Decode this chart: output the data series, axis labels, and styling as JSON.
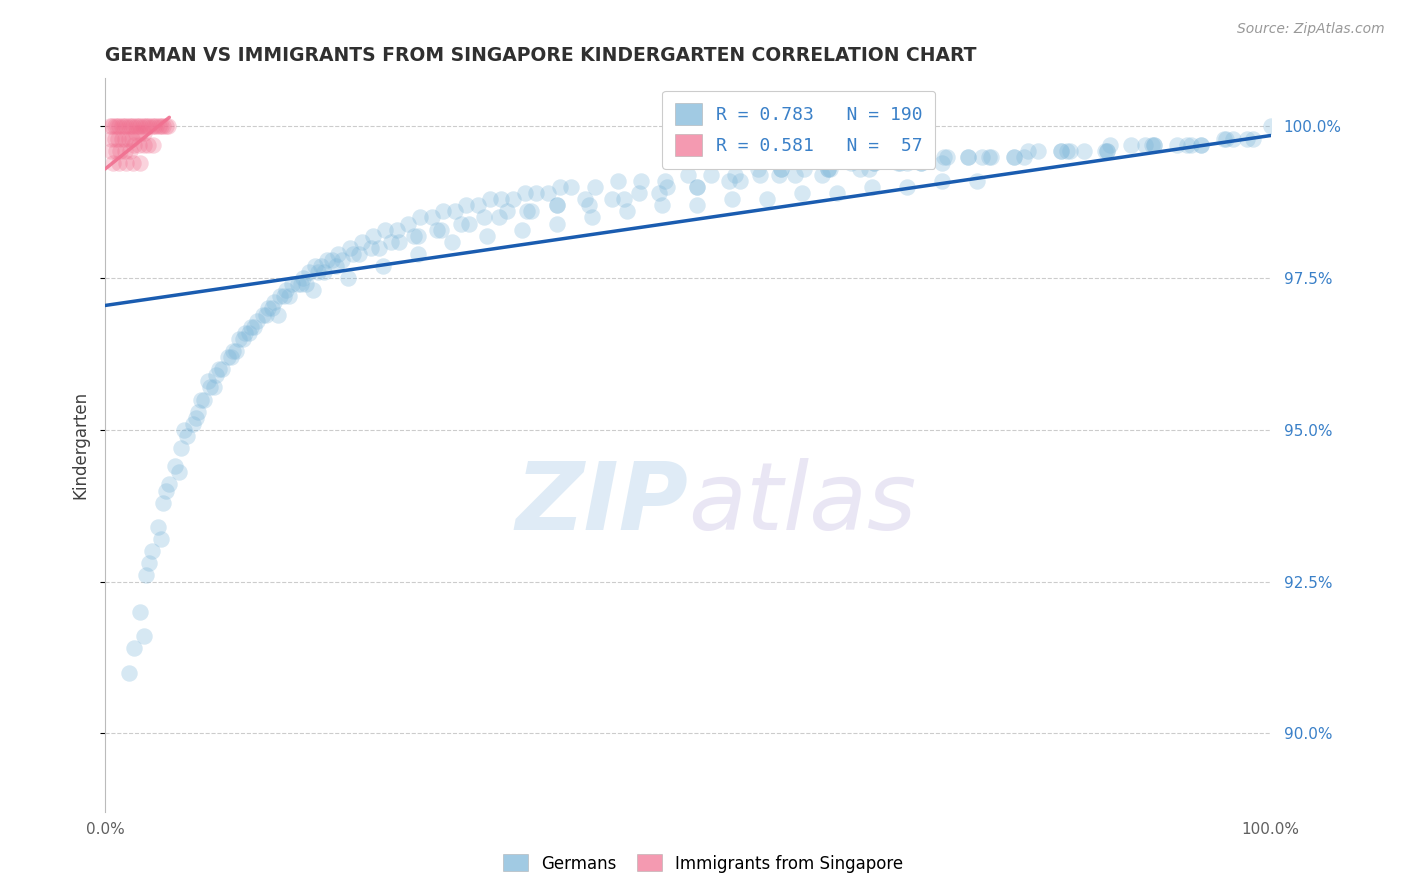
{
  "title": "GERMAN VS IMMIGRANTS FROM SINGAPORE KINDERGARTEN CORRELATION CHART",
  "source_text": "Source: ZipAtlas.com",
  "ylabel": "Kindergarten",
  "watermark_zip": "ZIP",
  "watermark_atlas": "atlas",
  "blue_color": "#7ab4d8",
  "pink_color": "#f07090",
  "trend_blue_color": "#1a5cb0",
  "background_color": "#ffffff",
  "grid_color": "#cccccc",
  "title_color": "#303030",
  "right_axis_color": "#3a80c8",
  "xmin": 0.0,
  "xmax": 1.0,
  "ymin": 0.887,
  "ymax": 1.008,
  "yticks": [
    0.9,
    0.925,
    0.95,
    0.975,
    1.0
  ],
  "legend_label_blue": "R = 0.783   N = 190",
  "legend_label_pink": "R = 0.581   N =  57",
  "blue_scatter_x": [
    0.02,
    0.03,
    0.035,
    0.04,
    0.045,
    0.05,
    0.055,
    0.06,
    0.065,
    0.07,
    0.075,
    0.08,
    0.085,
    0.09,
    0.095,
    0.1,
    0.105,
    0.11,
    0.115,
    0.12,
    0.125,
    0.13,
    0.135,
    0.14,
    0.145,
    0.15,
    0.155,
    0.16,
    0.165,
    0.17,
    0.175,
    0.18,
    0.185,
    0.19,
    0.195,
    0.2,
    0.21,
    0.22,
    0.23,
    0.24,
    0.25,
    0.26,
    0.27,
    0.28,
    0.29,
    0.3,
    0.31,
    0.32,
    0.33,
    0.34,
    0.35,
    0.36,
    0.37,
    0.38,
    0.39,
    0.4,
    0.42,
    0.44,
    0.46,
    0.48,
    0.5,
    0.52,
    0.54,
    0.56,
    0.58,
    0.6,
    0.62,
    0.64,
    0.66,
    0.68,
    0.7,
    0.72,
    0.74,
    0.76,
    0.78,
    0.8,
    0.82,
    0.84,
    0.86,
    0.88,
    0.9,
    0.92,
    0.94,
    0.96,
    0.98,
    1.0,
    0.025,
    0.038,
    0.052,
    0.068,
    0.082,
    0.098,
    0.112,
    0.128,
    0.143,
    0.158,
    0.172,
    0.188,
    0.203,
    0.218,
    0.235,
    0.252,
    0.268,
    0.285,
    0.305,
    0.325,
    0.345,
    0.365,
    0.388,
    0.412,
    0.435,
    0.458,
    0.482,
    0.508,
    0.535,
    0.562,
    0.592,
    0.622,
    0.655,
    0.688,
    0.722,
    0.758,
    0.792,
    0.828,
    0.862,
    0.898,
    0.932,
    0.968,
    0.033,
    0.048,
    0.063,
    0.078,
    0.093,
    0.108,
    0.123,
    0.138,
    0.153,
    0.168,
    0.183,
    0.198,
    0.213,
    0.228,
    0.245,
    0.265,
    0.288,
    0.312,
    0.338,
    0.362,
    0.388,
    0.415,
    0.445,
    0.475,
    0.508,
    0.545,
    0.578,
    0.615,
    0.648,
    0.682,
    0.718,
    0.752,
    0.788,
    0.825,
    0.858,
    0.892,
    0.928,
    0.962,
    0.985,
    0.58,
    0.62,
    0.66,
    0.7,
    0.74,
    0.78,
    0.82,
    0.86,
    0.9,
    0.94,
    0.088,
    0.118,
    0.148,
    0.178,
    0.208,
    0.238,
    0.268,
    0.298,
    0.328,
    0.358,
    0.388,
    0.418,
    0.448,
    0.478,
    0.508,
    0.538,
    0.568,
    0.598,
    0.628,
    0.658,
    0.688,
    0.718,
    0.748
  ],
  "blue_scatter_y": [
    0.91,
    0.92,
    0.926,
    0.93,
    0.934,
    0.938,
    0.941,
    0.944,
    0.947,
    0.949,
    0.951,
    0.953,
    0.955,
    0.957,
    0.959,
    0.96,
    0.962,
    0.963,
    0.965,
    0.966,
    0.967,
    0.968,
    0.969,
    0.97,
    0.971,
    0.972,
    0.973,
    0.974,
    0.974,
    0.975,
    0.976,
    0.977,
    0.977,
    0.978,
    0.978,
    0.979,
    0.98,
    0.981,
    0.982,
    0.983,
    0.983,
    0.984,
    0.985,
    0.985,
    0.986,
    0.986,
    0.987,
    0.987,
    0.988,
    0.988,
    0.988,
    0.989,
    0.989,
    0.989,
    0.99,
    0.99,
    0.99,
    0.991,
    0.991,
    0.991,
    0.992,
    0.992,
    0.992,
    0.993,
    0.993,
    0.993,
    0.993,
    0.994,
    0.994,
    0.994,
    0.994,
    0.995,
    0.995,
    0.995,
    0.995,
    0.996,
    0.996,
    0.996,
    0.996,
    0.997,
    0.997,
    0.997,
    0.997,
    0.998,
    0.998,
    1.0,
    0.914,
    0.928,
    0.94,
    0.95,
    0.955,
    0.96,
    0.963,
    0.967,
    0.97,
    0.972,
    0.974,
    0.976,
    0.978,
    0.979,
    0.98,
    0.981,
    0.982,
    0.983,
    0.984,
    0.985,
    0.986,
    0.986,
    0.987,
    0.988,
    0.988,
    0.989,
    0.99,
    0.99,
    0.991,
    0.992,
    0.992,
    0.993,
    0.993,
    0.994,
    0.995,
    0.995,
    0.996,
    0.996,
    0.997,
    0.997,
    0.997,
    0.998,
    0.916,
    0.932,
    0.943,
    0.952,
    0.957,
    0.962,
    0.966,
    0.969,
    0.972,
    0.974,
    0.976,
    0.977,
    0.979,
    0.98,
    0.981,
    0.982,
    0.983,
    0.984,
    0.985,
    0.986,
    0.987,
    0.987,
    0.988,
    0.989,
    0.99,
    0.991,
    0.992,
    0.992,
    0.993,
    0.994,
    0.994,
    0.995,
    0.995,
    0.996,
    0.996,
    0.997,
    0.997,
    0.998,
    0.998,
    0.993,
    0.993,
    0.994,
    0.994,
    0.995,
    0.995,
    0.996,
    0.996,
    0.997,
    0.997,
    0.958,
    0.965,
    0.969,
    0.973,
    0.975,
    0.977,
    0.979,
    0.981,
    0.982,
    0.983,
    0.984,
    0.985,
    0.986,
    0.987,
    0.987,
    0.988,
    0.988,
    0.989,
    0.989,
    0.99,
    0.99,
    0.991,
    0.991
  ],
  "pink_scatter_x": [
    0.004,
    0.006,
    0.008,
    0.01,
    0.012,
    0.014,
    0.016,
    0.018,
    0.02,
    0.022,
    0.024,
    0.026,
    0.028,
    0.03,
    0.032,
    0.034,
    0.036,
    0.038,
    0.04,
    0.042,
    0.044,
    0.046,
    0.048,
    0.05,
    0.052,
    0.054,
    0.005,
    0.008,
    0.011,
    0.014,
    0.017,
    0.02,
    0.023,
    0.026,
    0.03,
    0.033,
    0.005,
    0.009,
    0.013,
    0.017,
    0.021,
    0.025,
    0.029,
    0.033,
    0.037,
    0.041,
    0.007,
    0.012,
    0.018,
    0.024,
    0.03
  ],
  "pink_scatter_y": [
    1.0,
    1.0,
    1.0,
    1.0,
    1.0,
    1.0,
    1.0,
    1.0,
    1.0,
    1.0,
    1.0,
    1.0,
    1.0,
    1.0,
    1.0,
    1.0,
    1.0,
    1.0,
    1.0,
    1.0,
    1.0,
    1.0,
    1.0,
    1.0,
    1.0,
    1.0,
    0.998,
    0.998,
    0.998,
    0.998,
    0.998,
    0.998,
    0.998,
    0.999,
    0.999,
    0.999,
    0.996,
    0.996,
    0.996,
    0.996,
    0.996,
    0.997,
    0.997,
    0.997,
    0.997,
    0.997,
    0.994,
    0.994,
    0.994,
    0.994,
    0.994
  ],
  "blue_trend_x": [
    0.0,
    1.0
  ],
  "blue_trend_y": [
    0.9705,
    0.9985
  ],
  "pink_trend_x": [
    0.0,
    0.055
  ],
  "pink_trend_y": [
    0.993,
    1.0015
  ],
  "marker_size": 140,
  "marker_alpha": 0.3,
  "marker_linewidth": 1.2
}
